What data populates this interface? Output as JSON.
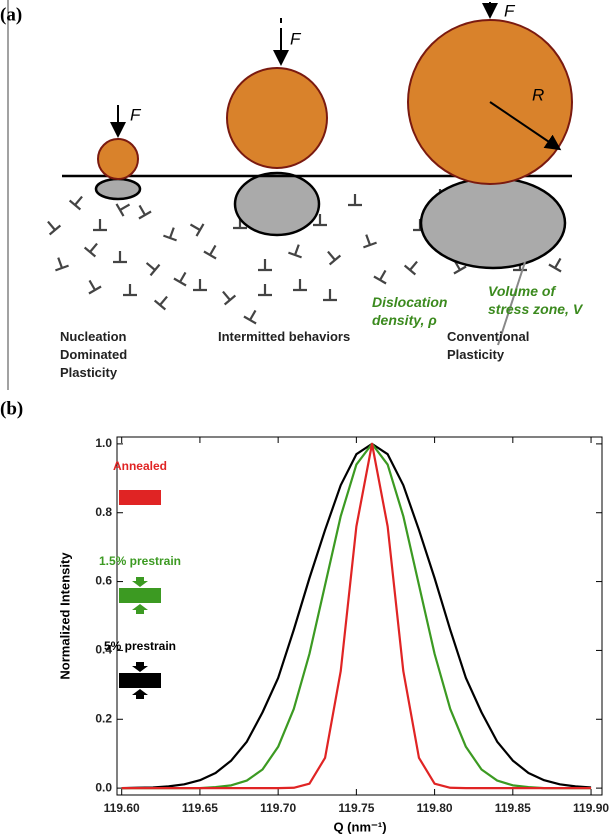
{
  "panel_a": {
    "label": "(a)",
    "force_labels": [
      "F",
      "F",
      "F"
    ],
    "radius_label": "R",
    "dislocation_label": [
      "Dislocation",
      "density, ρ"
    ],
    "volume_label": [
      "Volume of",
      "stress zone, V"
    ],
    "regimes": [
      [
        "Nucleation",
        "Dominated",
        "Plasticity"
      ],
      [
        "Intermitted behaviors"
      ],
      [
        "Conventional",
        "Plasticity"
      ]
    ]
  },
  "chart_data": {
    "type": "line",
    "panel_label": "(b)",
    "x_label": "Q (nm⁻¹)",
    "y_label": "Normalized Intensity",
    "x": [
      119.6,
      119.61,
      119.62,
      119.63,
      119.64,
      119.65,
      119.66,
      119.67,
      119.68,
      119.69,
      119.7,
      119.71,
      119.72,
      119.73,
      119.74,
      119.75,
      119.76,
      119.77,
      119.78,
      119.79,
      119.8,
      119.81,
      119.82,
      119.83,
      119.84,
      119.85,
      119.86,
      119.87,
      119.88,
      119.89,
      119.9
    ],
    "series": [
      {
        "name": "Annealed",
        "color": "#e02424",
        "values": [
          0,
          0,
          0,
          0,
          0,
          0,
          0,
          0,
          0,
          0,
          0,
          0.001,
          0.013,
          0.088,
          0.34,
          0.76,
          1.0,
          0.76,
          0.34,
          0.088,
          0.013,
          0.001,
          0,
          0,
          0,
          0,
          0,
          0,
          0,
          0,
          0
        ]
      },
      {
        "name": "1.5% prestrain",
        "color": "#3c9a22",
        "values": [
          0,
          0,
          0,
          0,
          0,
          0,
          0.003,
          0.008,
          0.022,
          0.054,
          0.12,
          0.23,
          0.39,
          0.59,
          0.79,
          0.94,
          1.0,
          0.94,
          0.79,
          0.59,
          0.39,
          0.23,
          0.12,
          0.054,
          0.022,
          0.008,
          0.003,
          0,
          0,
          0,
          0
        ]
      },
      {
        "name": "5% prestrain",
        "color": "#000000",
        "values": [
          0,
          0.001,
          0.002,
          0.005,
          0.011,
          0.023,
          0.044,
          0.08,
          0.135,
          0.22,
          0.32,
          0.46,
          0.61,
          0.75,
          0.88,
          0.97,
          1.0,
          0.97,
          0.88,
          0.75,
          0.61,
          0.46,
          0.32,
          0.22,
          0.135,
          0.08,
          0.044,
          0.023,
          0.011,
          0.005,
          0.002
        ]
      }
    ],
    "xlim": [
      119.597,
      119.907
    ],
    "xticks": [
      {
        "value": 119.6,
        "label": "119.60"
      },
      119.65,
      {
        "value": 119.7,
        "label": "119.70"
      },
      119.75,
      {
        "value": 119.8,
        "label": "119.80"
      },
      119.85,
      {
        "value": 119.9,
        "label": "119.90"
      }
    ],
    "ylim": [
      -0.02,
      1.02
    ],
    "yticks": [
      {
        "value": 0,
        "label": "0.0"
      },
      0.2,
      0.4,
      0.6,
      0.8,
      {
        "value": 1,
        "label": "1.0"
      }
    ],
    "grid": false
  }
}
